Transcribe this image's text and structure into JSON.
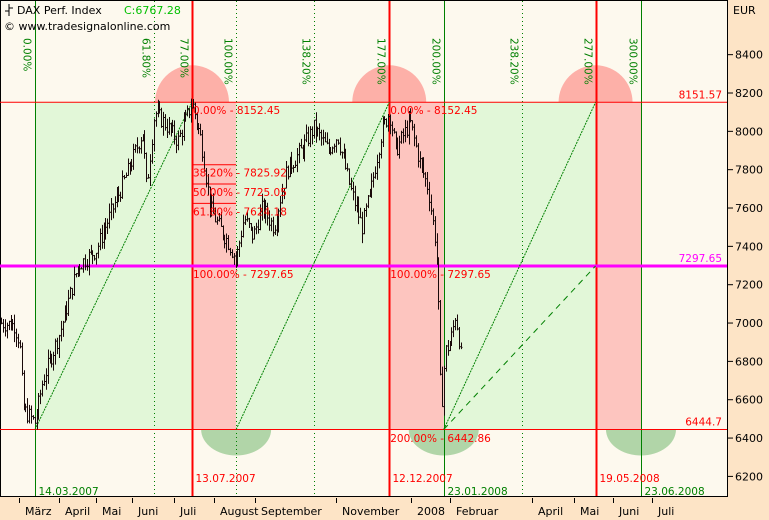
{
  "header": {
    "icon": "bar-chart-icon",
    "instrument": "DAX Perf. Index",
    "close_label": "C:6767.28",
    "copyright": "© www.tradesignalonline.com"
  },
  "colors": {
    "plot_bg": "#fdf9ee",
    "axis_bg": "#fde4c6",
    "zone_green": "#e2f7d8",
    "zone_red": "#fdc5bf",
    "red": "#ff0000",
    "green": "#008000",
    "magenta": "#ff00ff",
    "bars": "#1a0a0a"
  },
  "chart_data": {
    "type": "ohlc",
    "y_axis": {
      "unit": "EUR",
      "ticks": [
        8400,
        8200,
        8000,
        7800,
        7600,
        7400,
        7200,
        7000,
        6800,
        6600,
        6400,
        6200
      ],
      "ylim": [
        6120,
        8490
      ]
    },
    "x_axis": {
      "month_labels": [
        "März",
        "April",
        "Mai",
        "Juni",
        "Juli",
        "August",
        "September",
        "November",
        "2008",
        "Februar",
        "April",
        "Mai",
        "Juni",
        "Juli"
      ]
    },
    "approx_price_path": [
      [
        "2007-02-16",
        7000
      ],
      [
        "2007-02-26",
        6990
      ],
      [
        "2007-03-02",
        6900
      ],
      [
        "2007-03-05",
        6550
      ],
      [
        "2007-03-14",
        6480
      ],
      [
        "2007-03-20",
        6700
      ],
      [
        "2007-04-02",
        6950
      ],
      [
        "2007-04-16",
        7300
      ],
      [
        "2007-04-30",
        7380
      ],
      [
        "2007-05-10",
        7550
      ],
      [
        "2007-05-25",
        7800
      ],
      [
        "2007-06-05",
        8000
      ],
      [
        "2007-06-08",
        7700
      ],
      [
        "2007-06-14",
        8100
      ],
      [
        "2007-06-21",
        8050
      ],
      [
        "2007-07-02",
        7950
      ],
      [
        "2007-07-13",
        8150
      ],
      [
        "2007-07-20",
        7950
      ],
      [
        "2007-07-27",
        7600
      ],
      [
        "2007-08-03",
        7500
      ],
      [
        "2007-08-10",
        7420
      ],
      [
        "2007-08-16",
        7330
      ],
      [
        "2007-08-22",
        7550
      ],
      [
        "2007-08-29",
        7450
      ],
      [
        "2007-09-05",
        7600
      ],
      [
        "2007-09-14",
        7500
      ],
      [
        "2007-09-24",
        7800
      ],
      [
        "2007-10-05",
        7900
      ],
      [
        "2007-10-15",
        8020
      ],
      [
        "2007-10-26",
        7900
      ],
      [
        "2007-11-02",
        7980
      ],
      [
        "2007-11-12",
        7700
      ],
      [
        "2007-11-21",
        7500
      ],
      [
        "2007-11-28",
        7700
      ],
      [
        "2007-12-06",
        8000
      ],
      [
        "2007-12-12",
        8100
      ],
      [
        "2007-12-17",
        7900
      ],
      [
        "2007-12-28",
        8050
      ],
      [
        "2008-01-04",
        7850
      ],
      [
        "2008-01-11",
        7700
      ],
      [
        "2008-01-16",
        7450
      ],
      [
        "2008-01-18",
        7300
      ],
      [
        "2008-01-21",
        6500
      ],
      [
        "2008-01-22",
        6650
      ],
      [
        "2008-01-24",
        6850
      ],
      [
        "2008-01-28",
        6900
      ],
      [
        "2008-01-31",
        7000
      ],
      [
        "2008-02-01",
        7050
      ],
      [
        "2008-02-04",
        6900
      ],
      [
        "2008-02-06",
        6770
      ]
    ],
    "levels": [
      {
        "value": 8151.57,
        "label": "8151.57",
        "color": "red"
      },
      {
        "value": 7297.65,
        "label": "7297.65",
        "color": "magenta"
      },
      {
        "value": 6444.7,
        "label": "6444.7",
        "color": "red"
      }
    ],
    "retracement_labels": [
      {
        "value": 8152.45,
        "text": "0.00% - 8152.45",
        "date": "2007-07-13"
      },
      {
        "value": 7825.92,
        "text": "38.20% - 7825.92",
        "date": "2007-07-13"
      },
      {
        "value": 7725.05,
        "text": "50.00% - 7725.05",
        "date": "2007-07-13"
      },
      {
        "value": 7624.18,
        "text": "61.80% - 7624.18",
        "date": "2007-07-13"
      },
      {
        "value": 7297.65,
        "text": "100.00% - 7297.65",
        "date": "2007-07-13"
      },
      {
        "value": 8152.45,
        "text": "0.00% - 8152.45",
        "date": "2007-12-12"
      },
      {
        "value": 7297.65,
        "text": "100.00% - 7297.65",
        "date": "2007-12-12"
      },
      {
        "value": 6442.86,
        "text": "200.00% - 6442.86",
        "date": "2007-12-12"
      }
    ],
    "time_ratio_lines": [
      {
        "label": "0.00%",
        "date": "2007-03-14",
        "style": "solid",
        "date_label": "14.03.2007"
      },
      {
        "label": "61.80%",
        "date": "2007-06-14",
        "style": "dotted"
      },
      {
        "label": "77.00%",
        "date": "2007-07-13",
        "style": "red",
        "date_label": "13.07.2007"
      },
      {
        "label": "100.00%",
        "date": "2007-08-16",
        "style": "dotted"
      },
      {
        "label": "138.20%",
        "date": "2007-10-15",
        "style": "dotted"
      },
      {
        "label": "177.00%",
        "date": "2007-12-12",
        "style": "red",
        "date_label": "12.12.2007"
      },
      {
        "label": "200.00%",
        "date": "2008-01-23",
        "style": "solid",
        "date_label": "23.01.2008"
      },
      {
        "label": "238.20%",
        "date": "2008-03-23",
        "style": "dotted"
      },
      {
        "label": "277.00%",
        "date": "2008-05-19",
        "style": "red",
        "date_label": "19.05.2008"
      },
      {
        "label": "300.00%",
        "date": "2008-06-23",
        "style": "solid",
        "date_label": "23.06.2008"
      }
    ]
  }
}
